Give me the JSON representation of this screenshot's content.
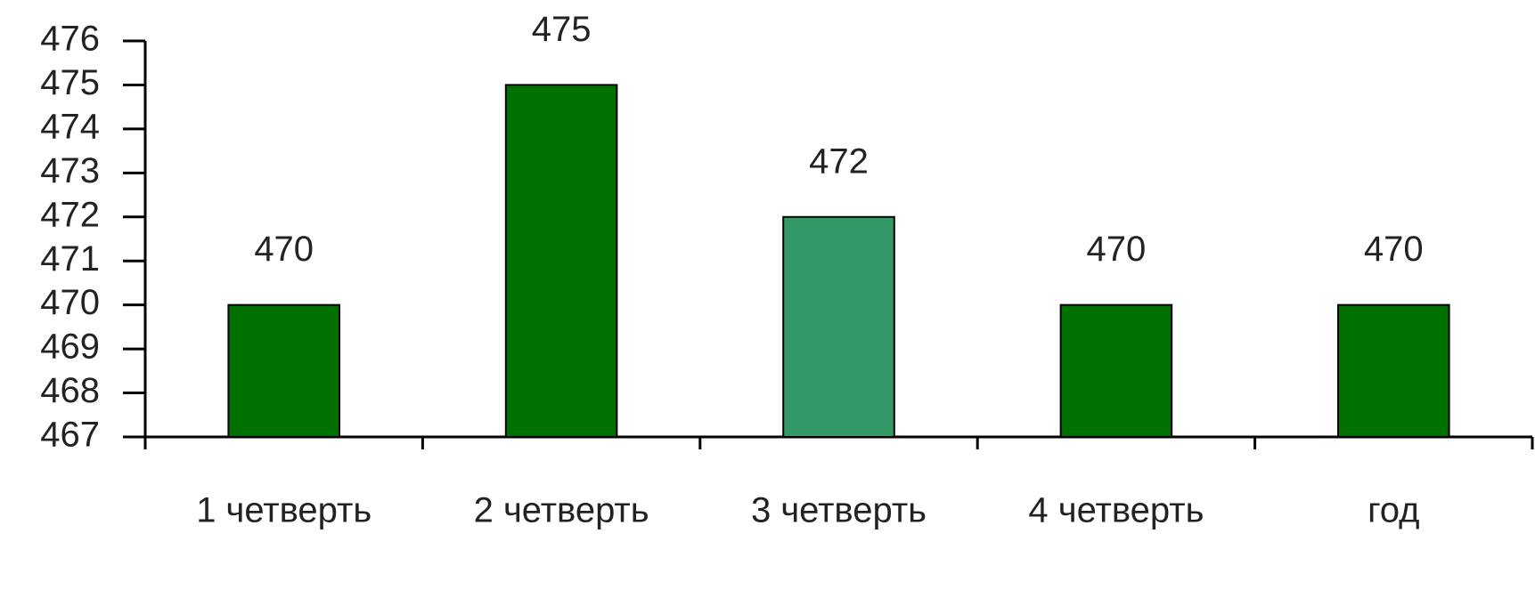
{
  "chart_data": {
    "type": "bar",
    "categories": [
      "1 четверть",
      "2 четверть",
      "3 четверть",
      "4 четверть",
      "год"
    ],
    "values": [
      470,
      475,
      472,
      470,
      470
    ],
    "colors": [
      "#007000",
      "#007000",
      "#339966",
      "#007000",
      "#007000"
    ],
    "ylim": [
      467,
      476
    ],
    "yticks": [
      467,
      468,
      469,
      470,
      471,
      472,
      473,
      474,
      475,
      476
    ]
  }
}
